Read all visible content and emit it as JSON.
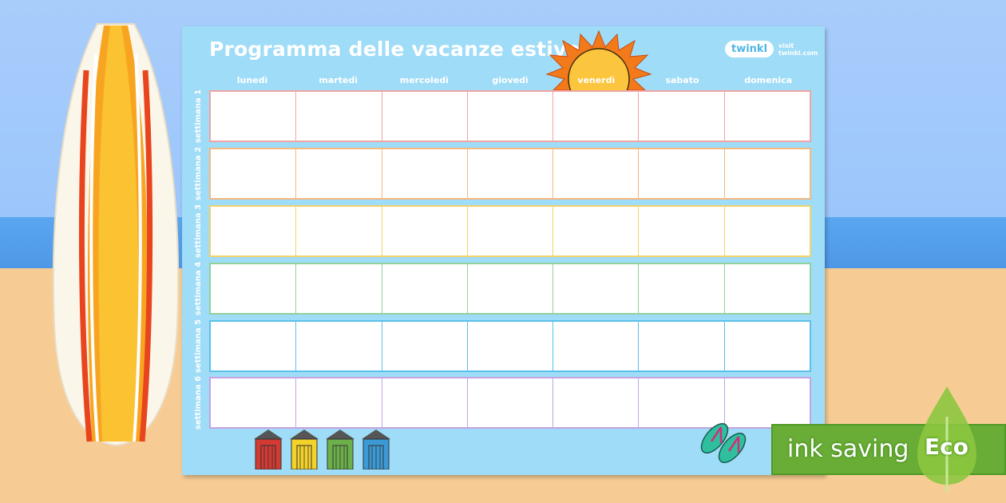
{
  "sheet": {
    "title": "Programma delle vacanze estive",
    "logo": {
      "brand": "twinkl",
      "link": "visit twinkl.com"
    },
    "days": [
      "lunedì",
      "martedì",
      "mercoledì",
      "giovedì",
      "venerdì",
      "sabato",
      "domenica"
    ],
    "weeks": [
      {
        "label": "settimana 1",
        "color": "#f2a3a3"
      },
      {
        "label": "settimana 2",
        "color": "#f4b883"
      },
      {
        "label": "settimana 3",
        "color": "#f2d26a"
      },
      {
        "label": "settimana 4",
        "color": "#92d09c"
      },
      {
        "label": "settimana 5",
        "color": "#5cc0ea"
      },
      {
        "label": "settimana 6",
        "color": "#c3a3e2"
      }
    ],
    "hut_colors": [
      "#d23a32",
      "#f3d22a",
      "#6cb04a",
      "#3b9ad6"
    ]
  },
  "eco_badge": {
    "text": "ink saving",
    "word": "Eco"
  }
}
